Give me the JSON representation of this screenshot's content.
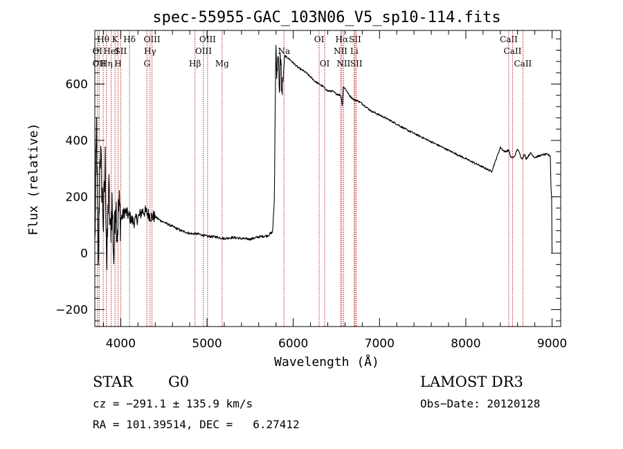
{
  "chart_data": {
    "type": "line",
    "title": "spec-55955-GAC_103N06_V5_sp10-114.fits",
    "xlabel": "Wavelength (Å)",
    "ylabel": "Flux (relative)",
    "xlim": [
      3700,
      9100
    ],
    "ylim": [
      -260,
      790
    ],
    "x_ticks": [
      4000,
      5000,
      6000,
      7000,
      8000,
      9000
    ],
    "x_tick_labels": [
      "4000",
      "5000",
      "6000",
      "7000",
      "8000",
      "9000"
    ],
    "y_ticks": [
      -200,
      0,
      200,
      400,
      600
    ],
    "y_tick_labels": [
      "−200",
      "0",
      "200",
      "400",
      "600"
    ],
    "series": [
      {
        "name": "flux",
        "x": [
          3700,
          3720,
          3740,
          3760,
          3780,
          3800,
          3820,
          3840,
          3860,
          3880,
          3900,
          3920,
          3940,
          3960,
          3980,
          4000,
          4050,
          4100,
          4150,
          4200,
          4250,
          4300,
          4350,
          4400,
          4450,
          4500,
          4600,
          4700,
          4800,
          4900,
          5000,
          5100,
          5200,
          5300,
          5400,
          5500,
          5600,
          5700,
          5760,
          5780,
          5790,
          5800,
          5810,
          5820,
          5830,
          5840,
          5850,
          5870,
          5900,
          5950,
          6000,
          6050,
          6100,
          6150,
          6200,
          6250,
          6300,
          6350,
          6400,
          6450,
          6500,
          6550,
          6560,
          6570,
          6580,
          6600,
          6650,
          6700,
          6750,
          6800,
          6900,
          7000,
          7100,
          7200,
          7300,
          7400,
          7500,
          7600,
          7700,
          7800,
          7900,
          8000,
          8100,
          8200,
          8300,
          8400,
          8450,
          8500,
          8520,
          8540,
          8560,
          8600,
          8650,
          8680,
          8700,
          8750,
          8800,
          8850,
          8900,
          8950,
          8980,
          8990,
          9000
        ],
        "y": [
          20,
          450,
          -80,
          380,
          250,
          100,
          320,
          -60,
          250,
          60,
          180,
          -20,
          200,
          80,
          170,
          120,
          150,
          130,
          110,
          125,
          150,
          145,
          130,
          130,
          118,
          110,
          95,
          80,
          70,
          68,
          60,
          58,
          52,
          56,
          52,
          50,
          58,
          62,
          75,
          180,
          480,
          780,
          600,
          720,
          650,
          540,
          720,
          560,
          700,
          690,
          675,
          660,
          650,
          640,
          625,
          610,
          600,
          590,
          575,
          575,
          565,
          560,
          545,
          520,
          590,
          585,
          560,
          545,
          540,
          530,
          505,
          490,
          475,
          458,
          440,
          425,
          410,
          395,
          380,
          365,
          350,
          335,
          320,
          305,
          290,
          375,
          360,
          365,
          340,
          340,
          340,
          370,
          335,
          350,
          335,
          355,
          340,
          345,
          350,
          350,
          345,
          200,
          0
        ]
      }
    ],
    "line_markers": [
      {
        "wl": 3750,
        "label": "OII",
        "row": 2
      },
      {
        "wl": 3730,
        "label": "OI",
        "row": 1
      },
      {
        "wl": 3797,
        "label": "Hθ",
        "row": 0
      },
      {
        "wl": 3835,
        "label": "Hη",
        "row": 2
      },
      {
        "wl": 3889,
        "label": "HeI",
        "row": 1
      },
      {
        "wl": 3934,
        "label": "K",
        "row": 0
      },
      {
        "wl": 3969,
        "label": "H",
        "row": 2
      },
      {
        "wl": 4000,
        "label": "SII",
        "row": 1
      },
      {
        "wl": 4102,
        "label": "Hδ",
        "row": 0
      },
      {
        "wl": 4304,
        "label": "G",
        "row": 2
      },
      {
        "wl": 4340,
        "label": "Hγ",
        "row": 1
      },
      {
        "wl": 4363,
        "label": "OIII",
        "row": 0
      },
      {
        "wl": 4861,
        "label": "Hβ",
        "row": 2
      },
      {
        "wl": 4959,
        "label": "OIII",
        "row": 1
      },
      {
        "wl": 5007,
        "label": "OIII",
        "row": 0
      },
      {
        "wl": 5175,
        "label": "Mg",
        "row": 2
      },
      {
        "wl": 5893,
        "label": "Na",
        "row": 1
      },
      {
        "wl": 6300,
        "label": "OI",
        "row": 0
      },
      {
        "wl": 6364,
        "label": "OI",
        "row": 2
      },
      {
        "wl": 6548,
        "label": "NII",
        "row": 1
      },
      {
        "wl": 6563,
        "label": "Hα",
        "row": 0
      },
      {
        "wl": 6583,
        "label": "NII",
        "row": 2
      },
      {
        "wl": 6707,
        "label": "Li",
        "row": 1
      },
      {
        "wl": 6716,
        "label": "SII",
        "row": 0
      },
      {
        "wl": 6731,
        "label": "SII",
        "row": 2
      },
      {
        "wl": 8498,
        "label": "CaII",
        "row": 0
      },
      {
        "wl": 8542,
        "label": "CaII",
        "row": 1
      },
      {
        "wl": 8662,
        "label": "CaII",
        "row": 2
      }
    ],
    "colors": {
      "spectrum": "#000000",
      "markers": "#b22222"
    }
  },
  "info": {
    "object_class": "STAR",
    "subclass": "G0",
    "survey": "LAMOST DR3",
    "redshift_text": "cz = −291.1 ± 135.9 km/s",
    "obs_date": "Obs−Date: 20120128",
    "coords": "RA = 101.39514, DEC =   6.27412"
  }
}
